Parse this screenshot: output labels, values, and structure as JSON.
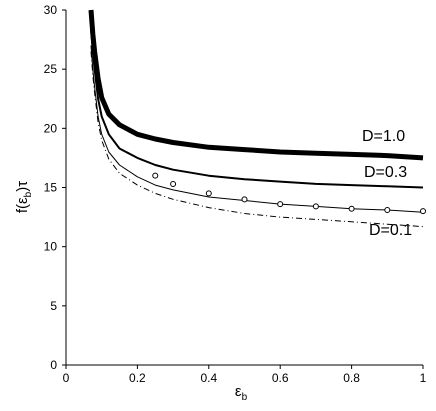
{
  "chart_data": {
    "type": "line",
    "title": "",
    "xlabel": "εb",
    "ylabel": "f(εb)τ",
    "xlim": [
      0,
      1
    ],
    "ylim": [
      0,
      30
    ],
    "grid": false,
    "legend": "none",
    "x_ticks": [
      "0",
      "0.2",
      "0.4",
      "0.6",
      "0.8",
      "1"
    ],
    "y_ticks": [
      "0",
      "5",
      "10",
      "15",
      "20",
      "25",
      "30"
    ],
    "labels": {
      "d10": "D=1.0",
      "d03": "D=0.3",
      "d01": "D=0.1"
    },
    "series": [
      {
        "name": "D=1.0",
        "style": "thick",
        "x": [
          0.07,
          0.075,
          0.08,
          0.09,
          0.1,
          0.12,
          0.15,
          0.2,
          0.25,
          0.3,
          0.4,
          0.5,
          0.6,
          0.7,
          0.8,
          0.9,
          1.0
        ],
        "y": [
          30.0,
          28.0,
          26.5,
          24.2,
          22.6,
          21.2,
          20.3,
          19.5,
          19.1,
          18.8,
          18.4,
          18.2,
          18.0,
          17.9,
          17.8,
          17.7,
          17.5
        ]
      },
      {
        "name": "D=0.3",
        "style": "solid",
        "x": [
          0.07,
          0.075,
          0.08,
          0.09,
          0.1,
          0.12,
          0.15,
          0.2,
          0.25,
          0.3,
          0.4,
          0.5,
          0.6,
          0.7,
          0.8,
          0.9,
          1.0
        ],
        "y": [
          28.5,
          26.5,
          25.0,
          22.5,
          21.0,
          19.5,
          18.3,
          17.5,
          16.9,
          16.5,
          16.0,
          15.7,
          15.5,
          15.3,
          15.2,
          15.1,
          15.0
        ]
      },
      {
        "name": "D=0.1",
        "style": "solid-thin",
        "x": [
          0.07,
          0.075,
          0.08,
          0.09,
          0.1,
          0.12,
          0.15,
          0.2,
          0.25,
          0.3,
          0.4,
          0.5,
          0.6,
          0.7,
          0.8,
          0.9,
          1.0
        ],
        "y": [
          27.0,
          25.0,
          23.5,
          21.0,
          19.5,
          18.0,
          16.9,
          15.9,
          15.2,
          14.8,
          14.2,
          13.9,
          13.6,
          13.4,
          13.2,
          13.1,
          12.9
        ]
      },
      {
        "name": "",
        "style": "dash-dot",
        "x": [
          0.07,
          0.075,
          0.08,
          0.09,
          0.1,
          0.12,
          0.15,
          0.2,
          0.25,
          0.3,
          0.4,
          0.5,
          0.6,
          0.7,
          0.8,
          0.9,
          1.0
        ],
        "y": [
          26.5,
          24.5,
          23.0,
          20.5,
          19.0,
          17.4,
          16.2,
          15.2,
          14.5,
          14.0,
          13.3,
          12.8,
          12.5,
          12.3,
          12.1,
          11.9,
          11.7
        ]
      },
      {
        "name": "",
        "style": "circles",
        "x": [
          0.25,
          0.3,
          0.4,
          0.5,
          0.6,
          0.7,
          0.8,
          0.9,
          1.0
        ],
        "y": [
          16.0,
          15.3,
          14.5,
          14.0,
          13.6,
          13.4,
          13.2,
          13.1,
          13.0
        ]
      }
    ]
  }
}
